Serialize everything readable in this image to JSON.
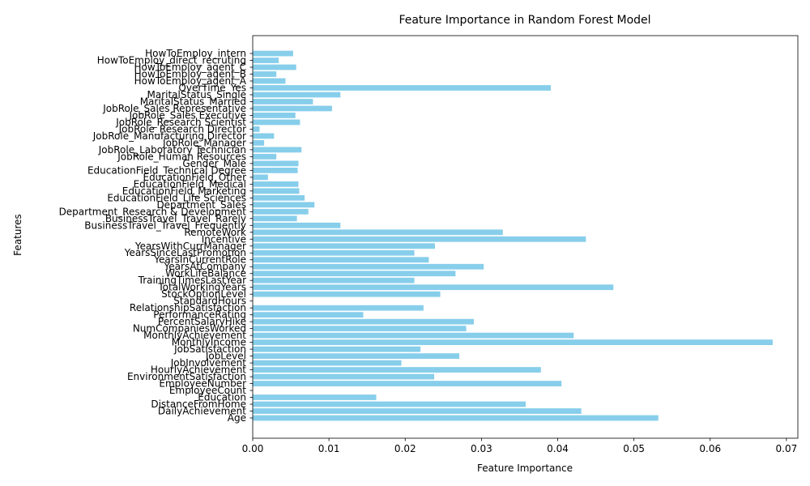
{
  "chart_data": {
    "type": "bar",
    "orientation": "horizontal",
    "title": "Feature Importance in Random Forest Model",
    "xlabel": "Feature Importance",
    "ylabel": "Features",
    "xlim": [
      0,
      0.0715
    ],
    "xticks": [
      "0.00",
      "0.01",
      "0.02",
      "0.03",
      "0.04",
      "0.05",
      "0.06",
      "0.07"
    ],
    "xtick_values": [
      0,
      0.01,
      0.02,
      0.03,
      0.04,
      0.05,
      0.06,
      0.07
    ],
    "bar_color": "#87ceeb",
    "grid": false,
    "legend": "none",
    "categories": [
      "Age",
      "DailyAchievement",
      "DistanceFromHome",
      "Education",
      "EmployeeCount",
      "EmployeeNumber",
      "EnvironmentSatisfaction",
      "HourlyAchievement",
      "JobInvolvement",
      "JobLevel",
      "JobSatisfaction",
      "MonthlyIncome",
      "MonthlyAchievement",
      "NumCompaniesWorked",
      "PercentSalaryHike",
      "PerformanceRating",
      "RelationshipSatisfaction",
      "StandardHours",
      "StockOptionLevel",
      "TotalWorkingYears",
      "TrainingTimesLastYear",
      "WorkLifeBalance",
      "YearsAtCompany",
      "YearsInCurrentRole",
      "YearsSinceLastPromotion",
      "YearsWithCurrManager",
      "Incentive",
      "RemoteWork",
      "BusinessTravel_Travel_Frequently",
      "BusinessTravel_Travel_Rarely",
      "Department_Research & Development",
      "Department_Sales",
      "EducationField_Life Sciences",
      "EducationField_Marketing",
      "EducationField_Medical",
      "EducationField_Other",
      "EducationField_Technical Degree",
      "Gender_Male",
      "JobRole_Human Resources",
      "JobRole_Laboratory Technician",
      "JobRole_Manager",
      "JobRole_Manufacturing Director",
      "JobRole_Research Director",
      "JobRole_Research Scientist",
      "JobRole_Sales Executive",
      "JobRole_Sales Representative",
      "MaritalStatus_Married",
      "MaritalStatus_Single",
      "OverTime_Yes",
      "HowToEmploy_agent_A",
      "HowToEmploy_agent_B",
      "HowToEmploy_agent_C",
      "HowToEmploy_direct_recruting",
      "HowToEmploy_intern"
    ],
    "values": [
      0.0532,
      0.0431,
      0.0358,
      0.0162,
      0.0,
      0.0405,
      0.0238,
      0.0378,
      0.0195,
      0.0271,
      0.022,
      0.0682,
      0.0421,
      0.028,
      0.029,
      0.0145,
      0.0224,
      0.0,
      0.0246,
      0.0473,
      0.0212,
      0.0266,
      0.0303,
      0.0231,
      0.0212,
      0.0239,
      0.0437,
      0.0328,
      0.0115,
      0.0058,
      0.0073,
      0.0081,
      0.0068,
      0.0061,
      0.006,
      0.002,
      0.0059,
      0.006,
      0.0031,
      0.0064,
      0.0015,
      0.0028,
      0.0009,
      0.0062,
      0.0056,
      0.0104,
      0.0079,
      0.0115,
      0.0391,
      0.0043,
      0.0031,
      0.0057,
      0.0034,
      0.0053
    ]
  }
}
